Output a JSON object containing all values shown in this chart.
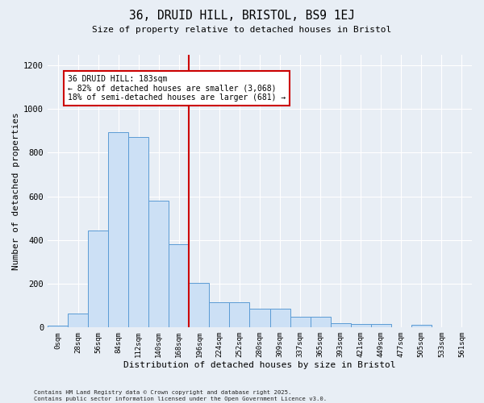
{
  "title1": "36, DRUID HILL, BRISTOL, BS9 1EJ",
  "title2": "Size of property relative to detached houses in Bristol",
  "xlabel": "Distribution of detached houses by size in Bristol",
  "ylabel": "Number of detached properties",
  "bar_labels": [
    "0sqm",
    "28sqm",
    "56sqm",
    "84sqm",
    "112sqm",
    "140sqm",
    "168sqm",
    "196sqm",
    "224sqm",
    "252sqm",
    "280sqm",
    "309sqm",
    "337sqm",
    "365sqm",
    "393sqm",
    "421sqm",
    "449sqm",
    "477sqm",
    "505sqm",
    "533sqm",
    "561sqm"
  ],
  "bar_values": [
    10,
    65,
    443,
    895,
    870,
    580,
    380,
    205,
    115,
    115,
    85,
    85,
    50,
    50,
    20,
    15,
    15,
    0,
    12,
    0,
    0
  ],
  "bar_color": "#cce0f5",
  "bar_edge_color": "#5b9bd5",
  "vline_x_idx": 7,
  "vline_color": "#cc0000",
  "annotation_text": "36 DRUID HILL: 183sqm\n← 82% of detached houses are smaller (3,068)\n18% of semi-detached houses are larger (681) →",
  "annotation_box_color": "#ffffff",
  "annotation_box_edge": "#cc0000",
  "ylim": [
    0,
    1250
  ],
  "yticks": [
    0,
    200,
    400,
    600,
    800,
    1000,
    1200
  ],
  "background_color": "#e8eef5",
  "grid_color": "#ffffff",
  "footer": "Contains HM Land Registry data © Crown copyright and database right 2025.\nContains public sector information licensed under the Open Government Licence v3.0."
}
